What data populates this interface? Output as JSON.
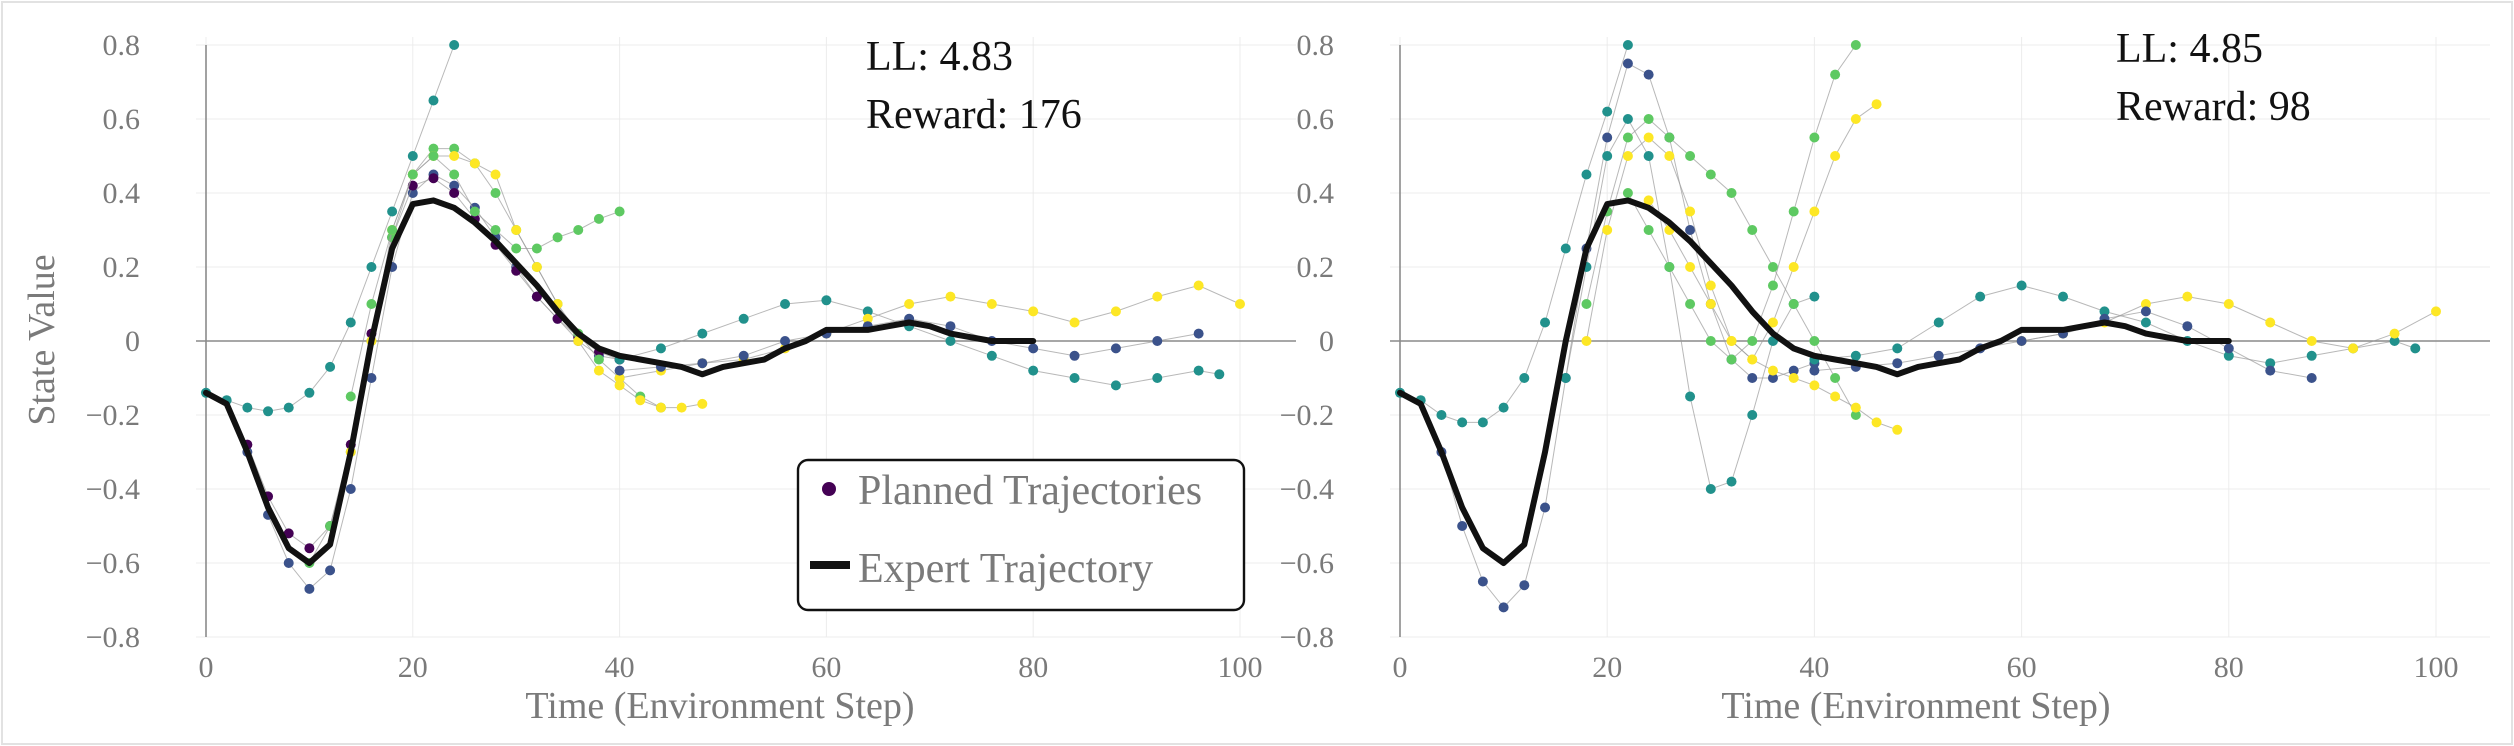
{
  "chart_data": [
    {
      "type": "line",
      "xlabel": "Time (Environment Step)",
      "ylabel": "State Value",
      "xlim": [
        0,
        100
      ],
      "ylim": [
        -0.8,
        0.8
      ],
      "x_ticks": [
        0,
        20,
        40,
        60,
        80,
        100
      ],
      "y_ticks": [
        -0.8,
        -0.6,
        -0.4,
        -0.2,
        0,
        0.2,
        0.4,
        0.6,
        0.8
      ],
      "y_tick_labels": [
        "−0.8",
        "−0.6",
        "−0.4",
        "−0.2",
        "0",
        "0.2",
        "0.4",
        "0.6",
        "0.8"
      ],
      "grid": true,
      "annotations": [
        "LL: 4.83",
        "Reward: 176"
      ],
      "legend": {
        "placement": "bottom-center",
        "entries": [
          "Planned Trajectories",
          "Expert Trajectory"
        ]
      },
      "colormap": [
        "#440154",
        "#3b528b",
        "#21918c",
        "#5ec962",
        "#fde725"
      ],
      "series": [
        {
          "name": "Expert Trajectory",
          "color": "#111111",
          "x": [
            0,
            2,
            4,
            6,
            8,
            10,
            12,
            14,
            16,
            18,
            20,
            22,
            24,
            26,
            28,
            30,
            32,
            34,
            36,
            38,
            40,
            42,
            44,
            46,
            48,
            50,
            52,
            54,
            56,
            58,
            60,
            62,
            64,
            66,
            68,
            70,
            72,
            74,
            76,
            78,
            80
          ],
          "y": [
            -0.14,
            -0.17,
            -0.3,
            -0.45,
            -0.56,
            -0.6,
            -0.55,
            -0.3,
            0.0,
            0.25,
            0.37,
            0.38,
            0.36,
            0.32,
            0.27,
            0.21,
            0.15,
            0.08,
            0.02,
            -0.02,
            -0.04,
            -0.05,
            -0.06,
            -0.07,
            -0.09,
            -0.07,
            -0.06,
            -0.05,
            -0.02,
            0.0,
            0.03,
            0.03,
            0.03,
            0.04,
            0.05,
            0.04,
            0.02,
            0.01,
            0.0,
            0.0,
            0.0
          ]
        },
        {
          "name": "",
          "color": "#21918c",
          "x": [
            0,
            2,
            4,
            6,
            8,
            10,
            12,
            14,
            16,
            18,
            20,
            22,
            24
          ],
          "y": [
            -0.14,
            -0.16,
            -0.18,
            -0.19,
            -0.18,
            -0.14,
            -0.07,
            0.05,
            0.2,
            0.35,
            0.5,
            0.65,
            0.8
          ]
        },
        {
          "name": "",
          "color": "#3b528b",
          "x": [
            4,
            6,
            8,
            10,
            12,
            14,
            16,
            18,
            20,
            22,
            24,
            26,
            28,
            30,
            32,
            34,
            36,
            38,
            40
          ],
          "y": [
            -0.3,
            -0.47,
            -0.6,
            -0.67,
            -0.62,
            -0.4,
            -0.1,
            0.2,
            0.4,
            0.45,
            0.42,
            0.36,
            0.28,
            0.2,
            0.12,
            0.06,
            0.0,
            -0.04,
            -0.05
          ]
        },
        {
          "name": "",
          "color": "#440154",
          "x": [
            4,
            6,
            8,
            10,
            12,
            14,
            16,
            18,
            20,
            22,
            24,
            26,
            28,
            30,
            32,
            34,
            36,
            38,
            40
          ],
          "y": [
            -0.28,
            -0.42,
            -0.52,
            -0.56,
            -0.5,
            -0.28,
            0.02,
            0.28,
            0.42,
            0.44,
            0.4,
            0.33,
            0.26,
            0.19,
            0.12,
            0.06,
            0.01,
            -0.03,
            -0.05
          ]
        },
        {
          "name": "",
          "color": "#5ec962",
          "x": [
            10,
            12,
            14,
            16,
            18,
            20,
            22,
            24,
            26,
            28,
            30,
            32,
            34,
            36,
            38,
            40,
            42,
            44
          ],
          "y": [
            -0.6,
            -0.5,
            -0.3,
            0.0,
            0.28,
            0.45,
            0.52,
            0.52,
            0.48,
            0.4,
            0.3,
            0.2,
            0.1,
            0.02,
            -0.05,
            -0.1,
            -0.15,
            -0.18
          ]
        },
        {
          "name": "",
          "color": "#fde725",
          "x": [
            14,
            16,
            18,
            20,
            22,
            24,
            26,
            28,
            30,
            32,
            34,
            36,
            38,
            40,
            42,
            44,
            46,
            48
          ],
          "y": [
            -0.3,
            0.0,
            0.3,
            0.45,
            0.5,
            0.5,
            0.48,
            0.45,
            0.3,
            0.2,
            0.1,
            0.0,
            -0.08,
            -0.12,
            -0.16,
            -0.18,
            -0.18,
            -0.17
          ]
        },
        {
          "name": "",
          "color": "#5ec962",
          "x": [
            14,
            16,
            18,
            20,
            22,
            24,
            26,
            28,
            30,
            32,
            34,
            36,
            38,
            40
          ],
          "y": [
            -0.15,
            0.1,
            0.3,
            0.45,
            0.5,
            0.45,
            0.35,
            0.3,
            0.25,
            0.25,
            0.28,
            0.3,
            0.33,
            0.35
          ]
        },
        {
          "name": "",
          "color": "#21918c",
          "x": [
            40,
            44,
            48,
            52,
            56,
            60,
            64,
            68,
            72,
            76,
            80,
            84,
            88,
            92,
            96,
            98
          ],
          "y": [
            -0.05,
            -0.02,
            0.02,
            0.06,
            0.1,
            0.11,
            0.08,
            0.04,
            0.0,
            -0.04,
            -0.08,
            -0.1,
            -0.12,
            -0.1,
            -0.08,
            -0.09
          ]
        },
        {
          "name": "",
          "color": "#fde725",
          "x": [
            40,
            44,
            48,
            52,
            56,
            60,
            64,
            68,
            72,
            76,
            80,
            84,
            88,
            92,
            96,
            100
          ],
          "y": [
            -0.1,
            -0.08,
            -0.06,
            -0.05,
            -0.02,
            0.02,
            0.06,
            0.1,
            0.12,
            0.1,
            0.08,
            0.05,
            0.08,
            0.12,
            0.15,
            0.1
          ]
        },
        {
          "name": "",
          "color": "#3b528b",
          "x": [
            40,
            44,
            48,
            52,
            56,
            60,
            64,
            68,
            72,
            76,
            80,
            84,
            88,
            92,
            96
          ],
          "y": [
            -0.08,
            -0.07,
            -0.06,
            -0.04,
            0.0,
            0.02,
            0.04,
            0.06,
            0.04,
            0.0,
            -0.02,
            -0.04,
            -0.02,
            0.0,
            0.02
          ]
        }
      ]
    },
    {
      "type": "line",
      "xlabel": "Time (Environment Step)",
      "ylabel": "",
      "xlim": [
        0,
        100
      ],
      "ylim": [
        -0.8,
        0.8
      ],
      "x_ticks": [
        0,
        20,
        40,
        60,
        80,
        100
      ],
      "y_ticks": [
        -0.8,
        -0.6,
        -0.4,
        -0.2,
        0,
        0.2,
        0.4,
        0.6,
        0.8
      ],
      "y_tick_labels": [
        "−0.8",
        "−0.6",
        "−0.4",
        "−0.2",
        "0",
        "0.2",
        "0.4",
        "0.6",
        "0.8"
      ],
      "grid": true,
      "annotations": [
        "LL: 4.85",
        "Reward: 98"
      ],
      "colormap": [
        "#440154",
        "#3b528b",
        "#21918c",
        "#5ec962",
        "#fde725"
      ],
      "series": [
        {
          "name": "Expert Trajectory",
          "color": "#111111",
          "x": [
            0,
            2,
            4,
            6,
            8,
            10,
            12,
            14,
            16,
            18,
            20,
            22,
            24,
            26,
            28,
            30,
            32,
            34,
            36,
            38,
            40,
            42,
            44,
            46,
            48,
            50,
            52,
            54,
            56,
            58,
            60,
            62,
            64,
            66,
            68,
            70,
            72,
            74,
            76,
            78,
            80
          ],
          "y": [
            -0.14,
            -0.17,
            -0.3,
            -0.45,
            -0.56,
            -0.6,
            -0.55,
            -0.3,
            0.0,
            0.25,
            0.37,
            0.38,
            0.36,
            0.32,
            0.27,
            0.21,
            0.15,
            0.08,
            0.02,
            -0.02,
            -0.04,
            -0.05,
            -0.06,
            -0.07,
            -0.09,
            -0.07,
            -0.06,
            -0.05,
            -0.02,
            0.0,
            0.03,
            0.03,
            0.03,
            0.04,
            0.05,
            0.04,
            0.02,
            0.01,
            0.0,
            0.0,
            0.0
          ]
        },
        {
          "name": "",
          "color": "#21918c",
          "x": [
            0,
            2,
            4,
            6,
            8,
            10,
            12,
            14,
            16,
            18,
            20,
            22
          ],
          "y": [
            -0.14,
            -0.16,
            -0.2,
            -0.22,
            -0.22,
            -0.18,
            -0.1,
            0.05,
            0.25,
            0.45,
            0.62,
            0.8
          ]
        },
        {
          "name": "",
          "color": "#3b528b",
          "x": [
            4,
            6,
            8,
            10,
            12,
            14,
            16,
            18,
            20,
            22,
            24,
            26,
            28,
            30,
            32,
            34,
            36,
            38,
            40
          ],
          "y": [
            -0.3,
            -0.5,
            -0.65,
            -0.72,
            -0.66,
            -0.45,
            -0.1,
            0.25,
            0.55,
            0.75,
            0.72,
            0.55,
            0.3,
            0.1,
            -0.05,
            -0.1,
            -0.1,
            -0.08,
            -0.06
          ]
        },
        {
          "name": "",
          "color": "#21918c",
          "x": [
            16,
            18,
            20,
            22,
            24,
            26,
            28,
            30,
            32,
            34,
            36,
            38,
            40
          ],
          "y": [
            -0.1,
            0.2,
            0.5,
            0.6,
            0.5,
            0.2,
            -0.15,
            -0.4,
            -0.38,
            -0.2,
            0.0,
            0.1,
            0.12
          ]
        },
        {
          "name": "",
          "color": "#5ec962",
          "x": [
            18,
            20,
            22,
            24,
            26,
            28,
            30,
            32,
            34,
            36,
            38,
            40,
            42,
            44
          ],
          "y": [
            0.1,
            0.35,
            0.55,
            0.6,
            0.55,
            0.5,
            0.45,
            0.4,
            0.3,
            0.2,
            0.1,
            0.0,
            -0.1,
            -0.2
          ]
        },
        {
          "name": "",
          "color": "#fde725",
          "x": [
            18,
            20,
            22,
            24,
            26,
            28,
            30,
            32,
            34,
            36,
            38,
            40,
            42,
            44,
            46,
            48
          ],
          "y": [
            0.0,
            0.3,
            0.5,
            0.55,
            0.5,
            0.35,
            0.15,
            0.0,
            -0.05,
            -0.08,
            -0.1,
            -0.12,
            -0.15,
            -0.18,
            -0.22,
            -0.24
          ]
        },
        {
          "name": "",
          "color": "#5ec962",
          "x": [
            22,
            24,
            26,
            28,
            30,
            32,
            34,
            36,
            38,
            40,
            42,
            44
          ],
          "y": [
            0.4,
            0.3,
            0.2,
            0.1,
            0.0,
            -0.05,
            0.0,
            0.15,
            0.35,
            0.55,
            0.72,
            0.8
          ]
        },
        {
          "name": "",
          "color": "#fde725",
          "x": [
            24,
            26,
            28,
            30,
            32,
            34,
            36,
            38,
            40,
            42,
            44,
            46
          ],
          "y": [
            0.38,
            0.3,
            0.2,
            0.1,
            0.0,
            -0.05,
            0.05,
            0.2,
            0.35,
            0.5,
            0.6,
            0.64
          ]
        },
        {
          "name": "",
          "color": "#21918c",
          "x": [
            40,
            44,
            48,
            52,
            56,
            60,
            64,
            68,
            72,
            76,
            80,
            84,
            88,
            92,
            96,
            98
          ],
          "y": [
            -0.05,
            -0.04,
            -0.02,
            0.05,
            0.12,
            0.15,
            0.12,
            0.08,
            0.05,
            0.0,
            -0.04,
            -0.06,
            -0.04,
            -0.02,
            0.0,
            -0.02
          ]
        },
        {
          "name": "",
          "color": "#fde725",
          "x": [
            60,
            64,
            68,
            72,
            76,
            80,
            84,
            88,
            92,
            96,
            100
          ],
          "y": [
            0.0,
            0.02,
            0.05,
            0.1,
            0.12,
            0.1,
            0.05,
            0.0,
            -0.02,
            0.02,
            0.08
          ]
        },
        {
          "name": "",
          "color": "#3b528b",
          "x": [
            40,
            44,
            48,
            52,
            56,
            60,
            64,
            68,
            72,
            76,
            80,
            84,
            88
          ],
          "y": [
            -0.08,
            -0.07,
            -0.06,
            -0.04,
            -0.02,
            0.0,
            0.02,
            0.06,
            0.08,
            0.04,
            -0.02,
            -0.08,
            -0.1
          ]
        }
      ]
    }
  ]
}
